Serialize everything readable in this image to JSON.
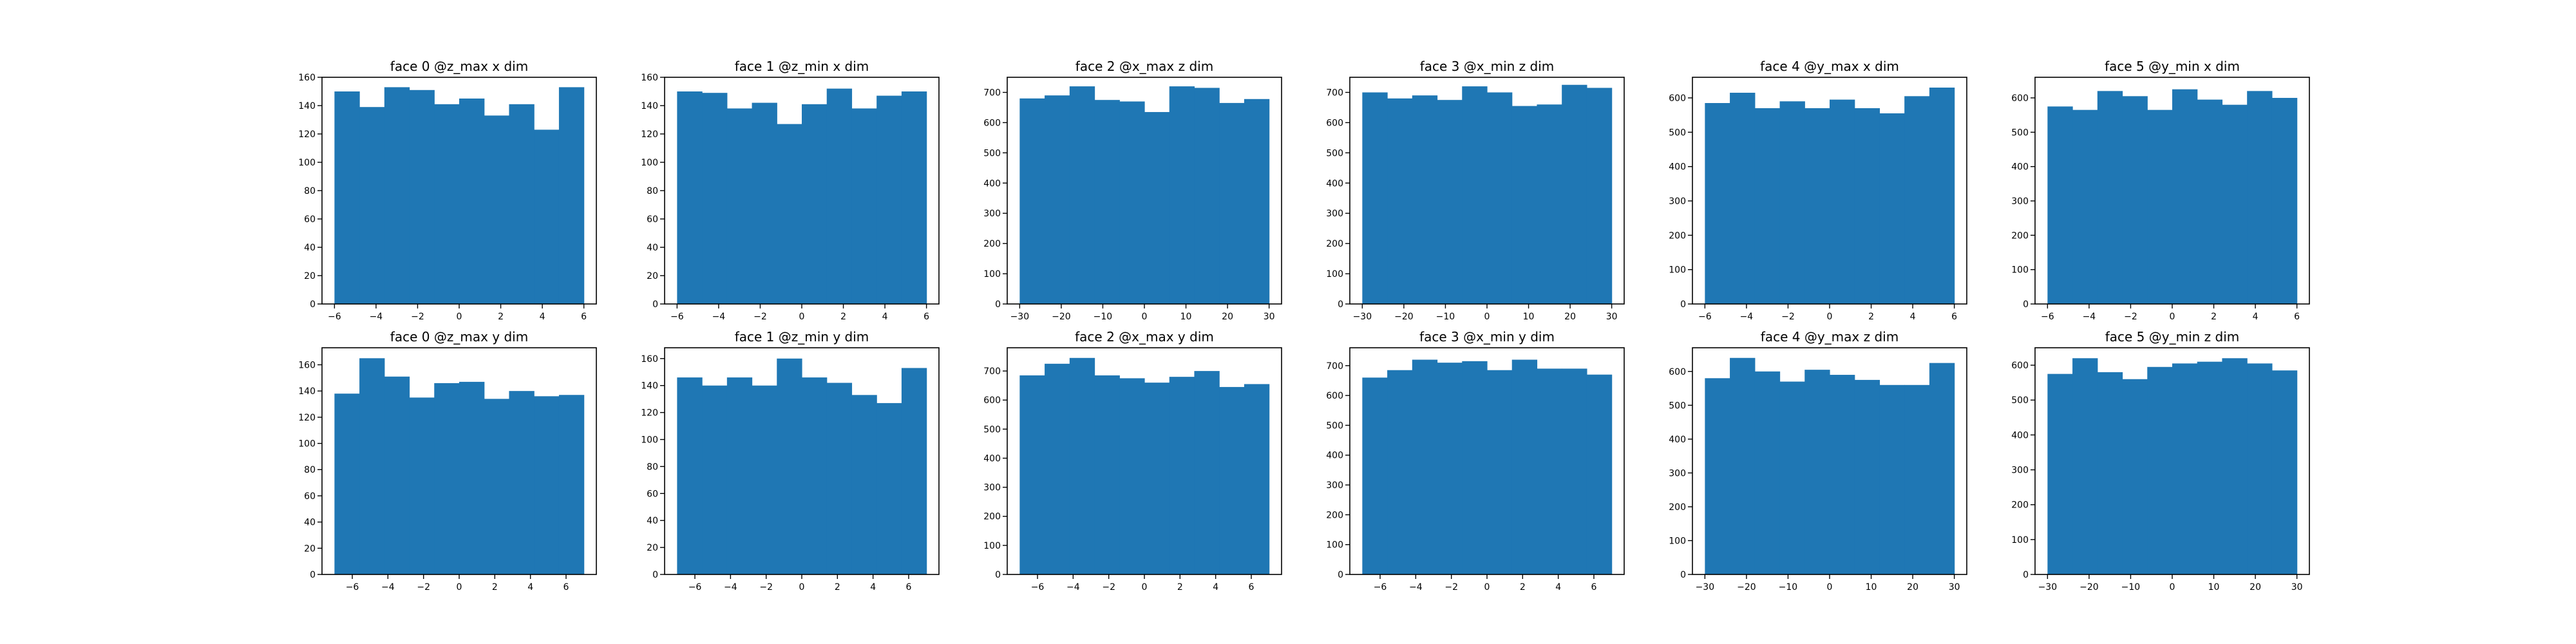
{
  "style": {
    "bar_color": "#1f77b4",
    "edge_color": "#000000"
  },
  "chart_data": [
    {
      "type": "bar",
      "title": "face 0 @z_max x dim",
      "xlim": [
        -6.6,
        6.6
      ],
      "ylim": [
        0,
        160
      ],
      "xticks": [
        -6,
        -4,
        -2,
        0,
        2,
        4,
        6
      ],
      "yticks": [
        0,
        20,
        40,
        60,
        80,
        100,
        120,
        140,
        160
      ],
      "bin_edges": [
        -6,
        -4.8,
        -3.6,
        -2.4,
        -1.2,
        0,
        1.2,
        2.4,
        3.6,
        4.8,
        6
      ],
      "values": [
        150,
        139,
        153,
        151,
        141,
        145,
        133,
        141,
        123,
        153
      ]
    },
    {
      "type": "bar",
      "title": "face 1 @z_min x dim",
      "xlim": [
        -6.6,
        6.6
      ],
      "ylim": [
        0,
        160
      ],
      "xticks": [
        -6,
        -4,
        -2,
        0,
        2,
        4,
        6
      ],
      "yticks": [
        0,
        20,
        40,
        60,
        80,
        100,
        120,
        140,
        160
      ],
      "bin_edges": [
        -6,
        -4.8,
        -3.6,
        -2.4,
        -1.2,
        0,
        1.2,
        2.4,
        3.6,
        4.8,
        6
      ],
      "values": [
        150,
        149,
        138,
        142,
        127,
        141,
        152,
        138,
        147,
        150
      ]
    },
    {
      "type": "bar",
      "title": "face 2 @x_max z dim",
      "xlim": [
        -33,
        33
      ],
      "ylim": [
        0,
        750
      ],
      "xticks": [
        -30,
        -20,
        -10,
        0,
        10,
        20,
        30
      ],
      "yticks": [
        0,
        100,
        200,
        300,
        400,
        500,
        600,
        700
      ],
      "bin_edges": [
        -30,
        -24,
        -18,
        -12,
        -6,
        0,
        6,
        12,
        18,
        24,
        30
      ],
      "values": [
        680,
        690,
        720,
        675,
        670,
        635,
        720,
        715,
        665,
        678
      ]
    },
    {
      "type": "bar",
      "title": "face 3 @x_min z dim",
      "xlim": [
        -33,
        33
      ],
      "ylim": [
        0,
        750
      ],
      "xticks": [
        -30,
        -20,
        -10,
        0,
        10,
        20,
        30
      ],
      "yticks": [
        0,
        100,
        200,
        300,
        400,
        500,
        600,
        700
      ],
      "bin_edges": [
        -30,
        -24,
        -18,
        -12,
        -6,
        0,
        6,
        12,
        18,
        24,
        30
      ],
      "values": [
        700,
        680,
        690,
        675,
        720,
        700,
        655,
        660,
        725,
        715
      ]
    },
    {
      "type": "bar",
      "title": "face 4 @y_max x dim",
      "xlim": [
        -6.6,
        6.6
      ],
      "ylim": [
        0,
        660
      ],
      "xticks": [
        -6,
        -4,
        -2,
        0,
        2,
        4,
        6
      ],
      "yticks": [
        0,
        100,
        200,
        300,
        400,
        500,
        600
      ],
      "bin_edges": [
        -6,
        -4.8,
        -3.6,
        -2.4,
        -1.2,
        0,
        1.2,
        2.4,
        3.6,
        4.8,
        6
      ],
      "values": [
        585,
        615,
        570,
        590,
        570,
        595,
        570,
        555,
        605,
        630
      ]
    },
    {
      "type": "bar",
      "title": "face 5 @y_min x dim",
      "xlim": [
        -6.6,
        6.6
      ],
      "ylim": [
        0,
        660
      ],
      "xticks": [
        -6,
        -4,
        -2,
        0,
        2,
        4,
        6
      ],
      "yticks": [
        0,
        100,
        200,
        300,
        400,
        500,
        600
      ],
      "bin_edges": [
        -6,
        -4.8,
        -3.6,
        -2.4,
        -1.2,
        0,
        1.2,
        2.4,
        3.6,
        4.8,
        6
      ],
      "values": [
        575,
        565,
        620,
        605,
        565,
        625,
        595,
        580,
        620,
        600
      ]
    },
    {
      "type": "bar",
      "title": "face 0 @z_max y dim",
      "xlim": [
        -7.7,
        7.7
      ],
      "ylim": [
        0,
        173
      ],
      "xticks": [
        -6,
        -4,
        -2,
        0,
        2,
        4,
        6
      ],
      "yticks": [
        0,
        20,
        40,
        60,
        80,
        100,
        120,
        140,
        160
      ],
      "bin_edges": [
        -7,
        -5.6,
        -4.2,
        -2.8,
        -1.4,
        0,
        1.4,
        2.8,
        4.2,
        5.6,
        7
      ],
      "values": [
        138,
        165,
        151,
        135,
        146,
        147,
        134,
        140,
        136,
        137
      ]
    },
    {
      "type": "bar",
      "title": "face 1 @z_min y dim",
      "xlim": [
        -7.7,
        7.7
      ],
      "ylim": [
        0,
        168
      ],
      "xticks": [
        -6,
        -4,
        -2,
        0,
        2,
        4,
        6
      ],
      "yticks": [
        0,
        20,
        40,
        60,
        80,
        100,
        120,
        140,
        160
      ],
      "bin_edges": [
        -7,
        -5.6,
        -4.2,
        -2.8,
        -1.4,
        0,
        1.4,
        2.8,
        4.2,
        5.6,
        7
      ],
      "values": [
        146,
        140,
        146,
        140,
        160,
        146,
        142,
        133,
        127,
        153
      ]
    },
    {
      "type": "bar",
      "title": "face 2 @x_max y dim",
      "xlim": [
        -7.7,
        7.7
      ],
      "ylim": [
        0,
        780
      ],
      "xticks": [
        -6,
        -4,
        -2,
        0,
        2,
        4,
        6
      ],
      "yticks": [
        0,
        100,
        200,
        300,
        400,
        500,
        600,
        700
      ],
      "bin_edges": [
        -7,
        -5.6,
        -4.2,
        -2.8,
        -1.4,
        0,
        1.4,
        2.8,
        4.2,
        5.6,
        7
      ],
      "values": [
        685,
        725,
        745,
        685,
        675,
        660,
        680,
        700,
        645,
        655
      ]
    },
    {
      "type": "bar",
      "title": "face 3 @x_min y dim",
      "xlim": [
        -7.7,
        7.7
      ],
      "ylim": [
        0,
        760
      ],
      "xticks": [
        -6,
        -4,
        -2,
        0,
        2,
        4,
        6
      ],
      "yticks": [
        0,
        100,
        200,
        300,
        400,
        500,
        600,
        700
      ],
      "bin_edges": [
        -7,
        -5.6,
        -4.2,
        -2.8,
        -1.4,
        0,
        1.4,
        2.8,
        4.2,
        5.6,
        7
      ],
      "values": [
        660,
        685,
        720,
        710,
        715,
        685,
        720,
        690,
        690,
        670
      ]
    },
    {
      "type": "bar",
      "title": "face 4 @y_max z dim",
      "xlim": [
        -33,
        33
      ],
      "ylim": [
        0,
        670
      ],
      "xticks": [
        -30,
        -20,
        -10,
        0,
        10,
        20,
        30
      ],
      "yticks": [
        0,
        100,
        200,
        300,
        400,
        500,
        600
      ],
      "bin_edges": [
        -30,
        -24,
        -18,
        -12,
        -6,
        0,
        6,
        12,
        18,
        24,
        30
      ],
      "values": [
        580,
        640,
        600,
        570,
        605,
        590,
        575,
        560,
        560,
        625
      ]
    },
    {
      "type": "bar",
      "title": "face 5 @y_min z dim",
      "xlim": [
        -33,
        33
      ],
      "ylim": [
        0,
        650
      ],
      "xticks": [
        -30,
        -20,
        -10,
        0,
        10,
        20,
        30
      ],
      "yticks": [
        0,
        100,
        200,
        300,
        400,
        500,
        600
      ],
      "bin_edges": [
        -30,
        -24,
        -18,
        -12,
        -6,
        0,
        6,
        12,
        18,
        24,
        30
      ],
      "values": [
        575,
        620,
        580,
        560,
        595,
        605,
        610,
        620,
        605,
        585
      ]
    }
  ]
}
